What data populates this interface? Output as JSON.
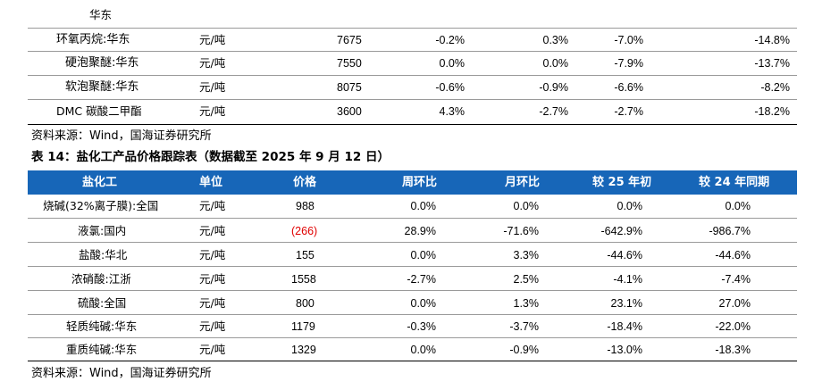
{
  "table1": {
    "partial_row_label": "华东",
    "rows": [
      {
        "name": "环氧丙烷:华东",
        "unit": "元/吨",
        "price": "7675",
        "wow": "-0.2%",
        "mom": "0.3%",
        "ytd": "-7.0%",
        "yoy": "-14.8%"
      },
      {
        "name": "硬泡聚醚:华东",
        "unit": "元/吨",
        "price": "7550",
        "wow": "0.0%",
        "mom": "0.0%",
        "ytd": "-7.9%",
        "yoy": "-13.7%"
      },
      {
        "name": "软泡聚醚:华东",
        "unit": "元/吨",
        "price": "8075",
        "wow": "-0.6%",
        "mom": "-0.9%",
        "ytd": "-6.6%",
        "yoy": "-8.2%"
      },
      {
        "name": "DMC 碳酸二甲酯",
        "unit": "元/吨",
        "price": "3600",
        "wow": "4.3%",
        "mom": "-2.7%",
        "ytd": "-2.7%",
        "yoy": "-18.2%"
      }
    ],
    "source": "资料来源：Wind，国海证券研究所"
  },
  "table2": {
    "title": "表 14：盐化工产品价格跟踪表（数据截至 2025 年 9 月 12 日）",
    "headers": [
      "盐化工",
      "单位",
      "价格",
      "周环比",
      "月环比",
      "较 25 年初",
      "较 24 年同期"
    ],
    "rows": [
      {
        "name": "烧碱(32%离子膜):全国",
        "unit": "元/吨",
        "price": "988",
        "wow": "0.0%",
        "mom": "0.0%",
        "ytd": "0.0%",
        "yoy": "0.0%"
      },
      {
        "name": "液氯:国内",
        "unit": "元/吨",
        "price": "(266)",
        "wow": "28.9%",
        "mom": "-71.6%",
        "ytd": "-642.9%",
        "yoy": "-986.7%"
      },
      {
        "name": "盐酸:华北",
        "unit": "元/吨",
        "price": "155",
        "wow": "0.0%",
        "mom": "3.3%",
        "ytd": "-44.6%",
        "yoy": "-44.6%"
      },
      {
        "name": "浓硝酸:江浙",
        "unit": "元/吨",
        "price": "1558",
        "wow": "-2.7%",
        "mom": "2.5%",
        "ytd": "-4.1%",
        "yoy": "-7.4%"
      },
      {
        "name": "硫酸:全国",
        "unit": "元/吨",
        "price": "800",
        "wow": "0.0%",
        "mom": "1.3%",
        "ytd": "23.1%",
        "yoy": "27.0%"
      },
      {
        "name": "轻质纯碱:华东",
        "unit": "元/吨",
        "price": "1179",
        "wow": "-0.3%",
        "mom": "-3.7%",
        "ytd": "-18.4%",
        "yoy": "-22.0%"
      },
      {
        "name": "重质纯碱:华东",
        "unit": "元/吨",
        "price": "1329",
        "wow": "0.0%",
        "mom": "-0.9%",
        "ytd": "-13.0%",
        "yoy": "-18.3%"
      }
    ],
    "source": "资料来源：Wind，国海证券研究所"
  },
  "colors": {
    "header_band": "#1766b8",
    "header_text": "#ffffff",
    "negative_value": "#e00000"
  }
}
